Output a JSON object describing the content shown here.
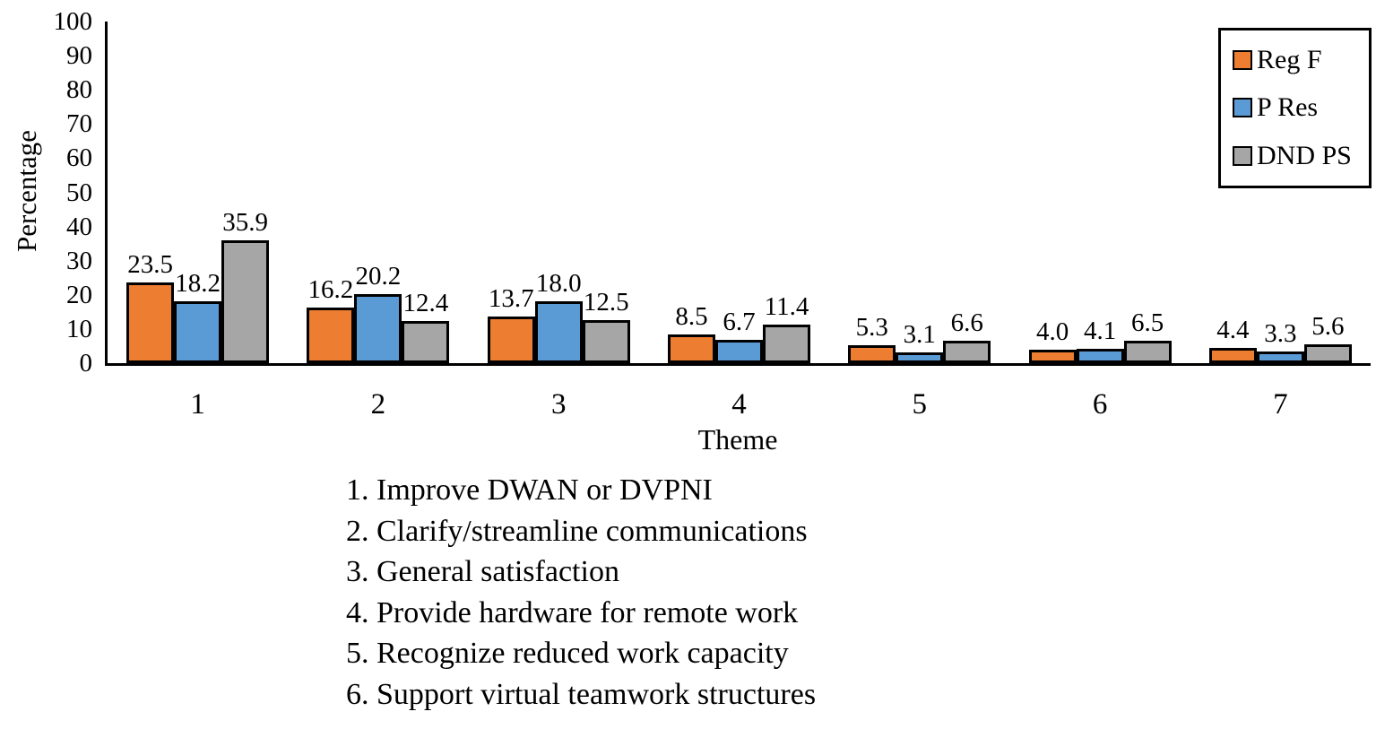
{
  "chart_data": {
    "type": "bar",
    "title": "",
    "xlabel": "Theme",
    "ylabel": "Percentage",
    "ylim": [
      0,
      100
    ],
    "ytick_step": 10,
    "grid": false,
    "legend_position": "top-right",
    "bar_outline_color": "#000000",
    "value_label_decimals": 1,
    "categories": [
      "1",
      "2",
      "3",
      "4",
      "5",
      "6",
      "7"
    ],
    "series": [
      {
        "name": "Reg F",
        "color": "#ED7D31",
        "values": [
          23.5,
          16.2,
          13.7,
          8.5,
          5.3,
          4.0,
          4.4
        ]
      },
      {
        "name": "P Res",
        "color": "#5B9BD5",
        "values": [
          18.2,
          20.2,
          18.0,
          6.7,
          3.1,
          4.1,
          3.3
        ]
      },
      {
        "name": "DND PS",
        "color": "#A6A6A6",
        "values": [
          35.9,
          12.4,
          12.5,
          11.4,
          6.6,
          6.5,
          5.6
        ]
      }
    ]
  },
  "theme_notes": [
    "1. Improve DWAN or DVPNI",
    "2. Clarify/streamline communications",
    "3. General satisfaction",
    "4. Provide hardware for remote work",
    "5. Recognize reduced work capacity",
    "6. Support virtual teamwork structures"
  ]
}
